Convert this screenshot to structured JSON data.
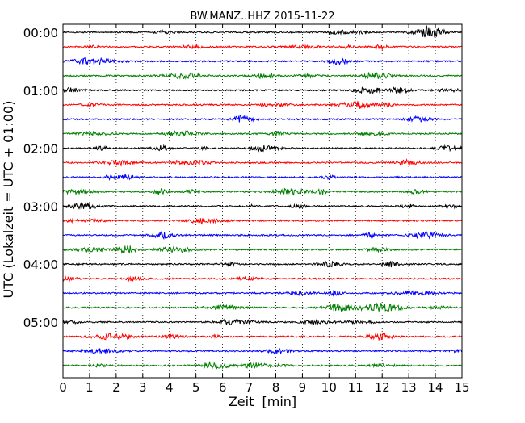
{
  "chart_data": {
    "type": "line",
    "title": "BW.MANZ..HHZ 2015-11-22",
    "xlabel": "Zeit  [min]",
    "ylabel": "UTC (Lokalzeit = UTC + 01:00)",
    "xlim": [
      0,
      15
    ],
    "x_ticks": [
      0,
      1,
      2,
      3,
      4,
      5,
      6,
      7,
      8,
      9,
      10,
      11,
      12,
      13,
      14,
      15
    ],
    "x_tick_labels": [
      "0",
      "1",
      "2",
      "3",
      "4",
      "5",
      "6",
      "7",
      "8",
      "9",
      "10",
      "11",
      "12",
      "13",
      "14",
      "15"
    ],
    "y_tick_labels": [
      "00:00",
      "01:00",
      "02:00",
      "03:00",
      "04:00",
      "05:00"
    ],
    "rows_per_hour": 4,
    "trace_count": 24,
    "trace_colors": [
      "#000000",
      "#ff0000",
      "#0000ff",
      "#008000"
    ],
    "vertical_gridlines": "dotted, every 1 minute",
    "notes": "Seismogram helicorder: 24 traces of 15 minutes each, cycling black/red/blue/green"
  }
}
